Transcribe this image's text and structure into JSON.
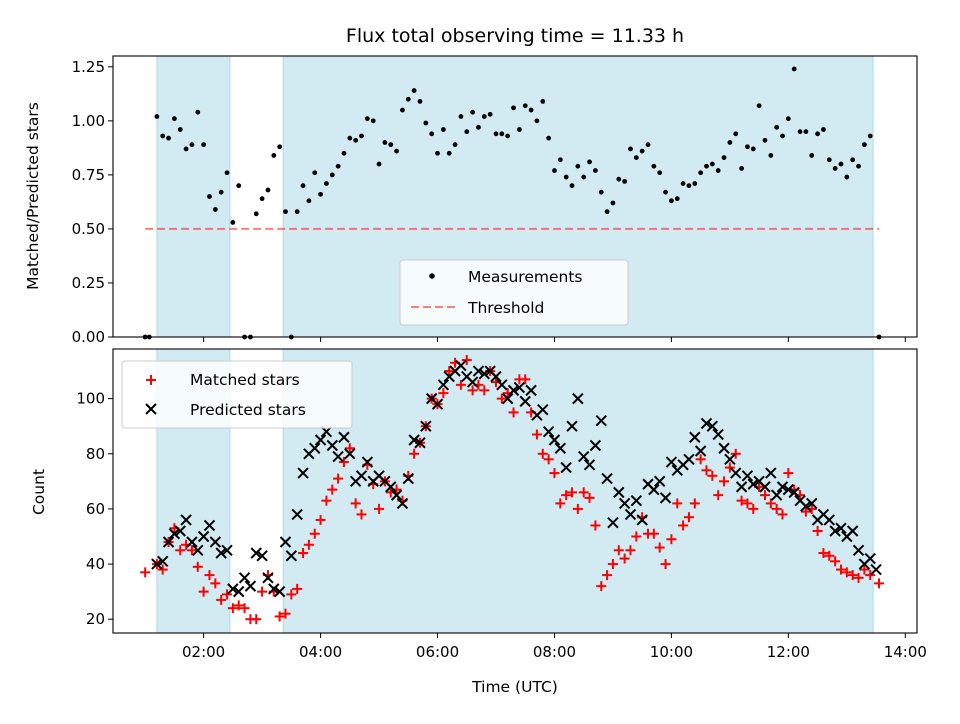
{
  "chart_data": [
    {
      "type": "scatter",
      "title": "Flux total observing time = 11.33 h",
      "xlabel": "",
      "ylabel": "Matched/Predicted stars",
      "xlim": [
        0.45,
        14.2
      ],
      "ylim": [
        0.0,
        1.3
      ],
      "yticks": [
        0.0,
        0.25,
        0.5,
        0.75,
        1.0,
        1.25
      ],
      "ytick_labels": [
        "0.00",
        "0.25",
        "0.50",
        "0.75",
        "1.00",
        "1.25"
      ],
      "xticks": [
        2,
        4,
        6,
        8,
        10,
        12,
        14
      ],
      "shaded_intervals": [
        [
          1.2,
          2.45
        ],
        [
          3.36,
          13.45
        ]
      ],
      "shaded_color": "#add8e6",
      "threshold": {
        "name": "Threshold",
        "value": 0.5,
        "x": [
          1.0,
          13.55
        ],
        "color": "#ff0000",
        "style": "dashed"
      },
      "series": [
        {
          "name": "Measurements",
          "color": "#000000",
          "marker": "dot",
          "x": [
            1.0,
            1.07,
            1.2,
            1.3,
            1.4,
            1.5,
            1.6,
            1.7,
            1.8,
            1.9,
            2.0,
            2.1,
            2.2,
            2.3,
            2.4,
            2.5,
            2.6,
            2.7,
            2.8,
            2.9,
            3.0,
            3.1,
            3.2,
            3.3,
            3.4,
            3.5,
            3.6,
            3.7,
            3.8,
            3.9,
            4.0,
            4.1,
            4.2,
            4.3,
            4.4,
            4.5,
            4.6,
            4.7,
            4.8,
            4.9,
            5.0,
            5.1,
            5.2,
            5.3,
            5.4,
            5.5,
            5.6,
            5.7,
            5.8,
            5.9,
            6.0,
            6.1,
            6.2,
            6.3,
            6.4,
            6.5,
            6.6,
            6.7,
            6.8,
            6.9,
            7.0,
            7.1,
            7.2,
            7.3,
            7.4,
            7.5,
            7.6,
            7.7,
            7.8,
            7.9,
            8.0,
            8.1,
            8.2,
            8.3,
            8.4,
            8.5,
            8.6,
            8.7,
            8.8,
            8.9,
            9.0,
            9.1,
            9.2,
            9.3,
            9.4,
            9.5,
            9.6,
            9.7,
            9.8,
            9.9,
            10.0,
            10.1,
            10.2,
            10.3,
            10.4,
            10.5,
            10.6,
            10.7,
            10.8,
            10.9,
            11.0,
            11.1,
            11.2,
            11.3,
            11.4,
            11.5,
            11.6,
            11.7,
            11.8,
            11.9,
            12.0,
            12.1,
            12.2,
            12.3,
            12.4,
            12.5,
            12.6,
            12.7,
            12.8,
            12.9,
            13.0,
            13.1,
            13.2,
            13.3,
            13.4,
            13.55
          ],
          "y": [
            0.0,
            0.0,
            1.02,
            0.93,
            0.92,
            1.01,
            0.96,
            0.87,
            0.89,
            1.04,
            0.89,
            0.65,
            0.59,
            0.67,
            0.76,
            0.53,
            0.7,
            0.0,
            0.0,
            0.57,
            0.64,
            0.68,
            0.84,
            0.88,
            0.58,
            0.0,
            0.58,
            0.7,
            0.63,
            0.76,
            0.66,
            0.71,
            0.75,
            0.79,
            0.85,
            0.92,
            0.91,
            0.93,
            1.01,
            1.0,
            0.8,
            0.9,
            0.89,
            0.86,
            1.05,
            1.1,
            1.14,
            1.09,
            0.99,
            0.94,
            0.85,
            0.96,
            0.85,
            0.89,
            1.02,
            0.95,
            1.04,
            0.97,
            1.02,
            1.03,
            0.94,
            0.94,
            0.93,
            1.06,
            0.96,
            1.07,
            1.05,
            1.0,
            1.09,
            0.92,
            0.77,
            0.82,
            0.74,
            0.7,
            0.79,
            0.74,
            0.81,
            0.77,
            0.67,
            0.58,
            0.62,
            0.73,
            0.72,
            0.87,
            0.83,
            0.86,
            0.89,
            0.79,
            0.76,
            0.67,
            0.63,
            0.64,
            0.71,
            0.7,
            0.71,
            0.76,
            0.79,
            0.8,
            0.77,
            0.83,
            0.9,
            0.94,
            0.78,
            0.88,
            0.87,
            1.07,
            0.91,
            0.84,
            0.97,
            0.93,
            1.01,
            1.24,
            0.95,
            0.95,
            0.84,
            0.94,
            0.96,
            0.82,
            0.78,
            0.8,
            0.74,
            0.82,
            0.79,
            0.89,
            0.93,
            0.0
          ]
        }
      ],
      "legend": {
        "position": "bottom-center",
        "entries": [
          "Measurements",
          "Threshold"
        ]
      }
    },
    {
      "type": "scatter",
      "title": "",
      "xlabel": "Time (UTC)",
      "ylabel": "Count",
      "xlim": [
        0.45,
        14.2
      ],
      "ylim": [
        15,
        118
      ],
      "yticks": [
        20,
        40,
        60,
        80,
        100
      ],
      "xticks": [
        2,
        4,
        6,
        8,
        10,
        12,
        14
      ],
      "xtick_labels": [
        "02:00",
        "04:00",
        "06:00",
        "08:00",
        "10:00",
        "12:00",
        "14:00"
      ],
      "shaded_intervals": [
        [
          1.2,
          2.45
        ],
        [
          3.36,
          13.45
        ]
      ],
      "shaded_color": "#add8e6",
      "series": [
        {
          "name": "Matched stars",
          "color": "#ff0000",
          "marker": "plus",
          "x": [
            1.0,
            1.2,
            1.3,
            1.4,
            1.5,
            1.6,
            1.7,
            1.8,
            1.9,
            2.0,
            2.1,
            2.2,
            2.3,
            2.4,
            2.5,
            2.6,
            2.7,
            2.8,
            2.9,
            3.0,
            3.1,
            3.2,
            3.3,
            3.4,
            3.5,
            3.6,
            3.7,
            3.8,
            3.9,
            4.0,
            4.1,
            4.2,
            4.3,
            4.4,
            4.5,
            4.6,
            4.7,
            4.8,
            4.9,
            5.0,
            5.1,
            5.2,
            5.3,
            5.4,
            5.5,
            5.6,
            5.7,
            5.8,
            5.9,
            6.0,
            6.1,
            6.2,
            6.3,
            6.4,
            6.5,
            6.6,
            6.7,
            6.8,
            6.9,
            7.0,
            7.1,
            7.2,
            7.3,
            7.4,
            7.5,
            7.6,
            7.7,
            7.8,
            7.9,
            8.0,
            8.1,
            8.2,
            8.3,
            8.4,
            8.5,
            8.6,
            8.7,
            8.8,
            8.9,
            9.0,
            9.1,
            9.2,
            9.3,
            9.4,
            9.5,
            9.6,
            9.7,
            9.8,
            9.9,
            10.0,
            10.1,
            10.2,
            10.3,
            10.4,
            10.5,
            10.6,
            10.7,
            10.8,
            10.9,
            11.0,
            11.1,
            11.2,
            11.3,
            11.4,
            11.5,
            11.6,
            11.7,
            11.8,
            11.9,
            12.0,
            12.1,
            12.2,
            12.3,
            12.4,
            12.5,
            12.6,
            12.7,
            12.8,
            12.9,
            13.0,
            13.1,
            13.2,
            13.3,
            13.4,
            13.55
          ],
          "y": [
            37,
            40,
            38,
            48,
            53,
            45,
            47,
            45,
            39,
            30,
            36,
            33,
            27,
            29,
            24,
            25,
            24,
            20,
            20,
            30,
            36,
            30,
            21,
            22,
            29,
            31,
            44,
            47,
            51,
            56,
            63,
            67,
            71,
            77,
            82,
            62,
            58,
            76,
            69,
            60,
            70,
            66,
            67,
            63,
            72,
            80,
            84,
            90,
            100,
            98,
            102,
            110,
            113,
            105,
            114,
            103,
            105,
            103,
            110,
            106,
            100,
            102,
            95,
            107,
            107,
            95,
            87,
            80,
            78,
            73,
            62,
            65,
            66,
            60,
            66,
            64,
            54,
            32,
            36,
            40,
            45,
            42,
            45,
            50,
            57,
            51,
            51,
            46,
            40,
            49,
            62,
            54,
            57,
            62,
            78,
            74,
            72,
            65,
            70,
            75,
            80,
            63,
            62,
            60,
            68,
            65,
            62,
            60,
            58,
            73,
            67,
            65,
            59,
            60,
            52,
            44,
            43,
            41,
            38,
            37,
            36,
            35,
            38,
            36,
            33
          ]
        },
        {
          "name": "Predicted stars",
          "color": "#000000",
          "marker": "x",
          "x": [
            1.2,
            1.3,
            1.4,
            1.5,
            1.6,
            1.7,
            1.8,
            1.9,
            2.0,
            2.1,
            2.2,
            2.3,
            2.4,
            2.5,
            2.6,
            2.7,
            2.8,
            2.9,
            3.0,
            3.1,
            3.2,
            3.3,
            3.4,
            3.5,
            3.6,
            3.7,
            3.8,
            3.9,
            4.0,
            4.1,
            4.2,
            4.3,
            4.4,
            4.5,
            4.6,
            4.7,
            4.8,
            4.9,
            5.0,
            5.1,
            5.2,
            5.3,
            5.4,
            5.5,
            5.6,
            5.7,
            5.8,
            5.9,
            6.0,
            6.1,
            6.2,
            6.3,
            6.4,
            6.5,
            6.6,
            6.7,
            6.8,
            6.9,
            7.0,
            7.1,
            7.2,
            7.3,
            7.4,
            7.5,
            7.6,
            7.7,
            7.8,
            7.9,
            8.0,
            8.1,
            8.2,
            8.3,
            8.4,
            8.5,
            8.6,
            8.7,
            8.8,
            8.9,
            9.0,
            9.1,
            9.2,
            9.3,
            9.4,
            9.5,
            9.6,
            9.7,
            9.8,
            9.9,
            10.0,
            10.1,
            10.2,
            10.3,
            10.4,
            10.5,
            10.6,
            10.7,
            10.8,
            10.9,
            11.0,
            11.1,
            11.2,
            11.3,
            11.4,
            11.5,
            11.6,
            11.7,
            11.8,
            11.9,
            12.0,
            12.1,
            12.2,
            12.3,
            12.4,
            12.5,
            12.6,
            12.7,
            12.8,
            12.9,
            13.0,
            13.1,
            13.2,
            13.3,
            13.4,
            13.5
          ],
          "y": [
            40,
            41,
            48,
            51,
            52,
            56,
            48,
            45,
            50,
            54,
            48,
            44,
            45,
            31,
            30,
            35,
            32,
            44,
            43,
            35,
            31,
            30,
            48,
            43,
            58,
            73,
            80,
            82,
            85,
            88,
            83,
            79,
            86,
            80,
            70,
            72,
            77,
            70,
            72,
            70,
            68,
            65,
            62,
            71,
            85,
            84,
            90,
            100,
            98,
            105,
            108,
            110,
            112,
            108,
            106,
            110,
            109,
            110,
            108,
            105,
            100,
            103,
            104,
            99,
            103,
            94,
            96,
            88,
            85,
            82,
            75,
            90,
            100,
            79,
            76,
            83,
            92,
            71,
            55,
            66,
            62,
            58,
            63,
            56,
            69,
            67,
            70,
            64,
            77,
            74,
            76,
            78,
            86,
            81,
            91,
            90,
            87,
            82,
            78,
            73,
            68,
            72,
            69,
            70,
            68,
            73,
            65,
            68,
            67,
            66,
            63,
            61,
            62,
            56,
            58,
            56,
            52,
            53,
            50,
            52,
            45,
            40,
            42,
            38
          ]
        }
      ],
      "legend": {
        "position": "top-left",
        "entries": [
          "Matched stars",
          "Predicted stars"
        ]
      }
    }
  ]
}
